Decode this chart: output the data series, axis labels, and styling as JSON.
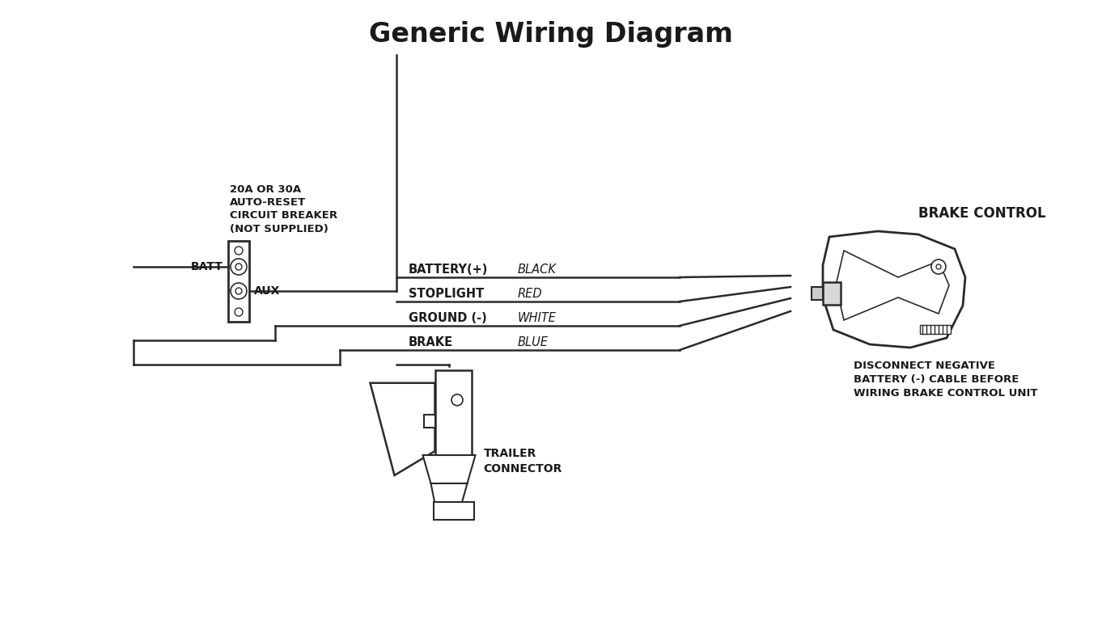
{
  "title": "Generic Wiring Diagram",
  "title_fontsize": 24,
  "title_fontweight": "bold",
  "bg_color": "#ffffff",
  "line_color": "#2a2a2a",
  "text_color": "#1a1a1a",
  "circuit_breaker_label": "20A OR 30A\nAUTO-RESET\nCIRCUIT BREAKER\n(NOT SUPPLIED)",
  "batt_label": "BATT",
  "aux_label": "AUX",
  "wire_labels": [
    "BATTERY(+)",
    "STOPLIGHT",
    "GROUND (-)",
    "BRAKE"
  ],
  "wire_colors_italic": [
    "BLACK",
    "RED",
    "WHITE",
    "BLUE"
  ],
  "brake_control_label": "BRAKE CONTROL",
  "disconnect_label": "DISCONNECT NEGATIVE\nBATTERY (-) CABLE BEFORE\nWIRING BRAKE CONTROL UNIT",
  "trailer_connector_label": "TRAILER\nCONNECTOR"
}
